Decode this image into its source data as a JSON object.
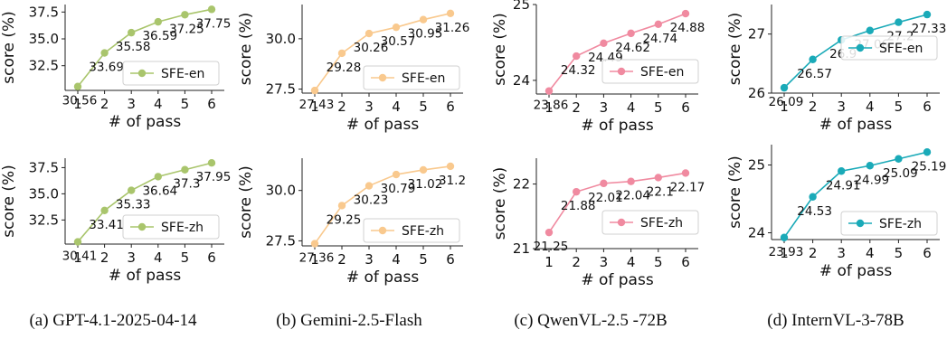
{
  "x_label": "# of pass",
  "y_label": "score (%)",
  "chart_data": [
    {
      "type": "line",
      "panel": "a",
      "title": "",
      "x": [
        1,
        2,
        3,
        4,
        5,
        6
      ],
      "series": [
        {
          "name": "SFE-en",
          "values": [
            30.56,
            33.69,
            35.58,
            36.59,
            37.25,
            37.75
          ]
        }
      ],
      "ylim": [
        30.2,
        38.2
      ],
      "yticks": [
        "32.5",
        "35.0",
        "37.5"
      ],
      "color": "#a9c56c",
      "legend": "lower-right"
    },
    {
      "type": "line",
      "panel": "a",
      "title": "",
      "x": [
        1,
        2,
        3,
        4,
        5,
        6
      ],
      "series": [
        {
          "name": "SFE-zh",
          "values": [
            30.41,
            33.41,
            35.33,
            36.64,
            37.3,
            37.95
          ]
        }
      ],
      "ylim": [
        30.2,
        38.4
      ],
      "yticks": [
        "32.5",
        "35.0",
        "37.5"
      ],
      "color": "#a9c56c",
      "legend": "lower-right"
    },
    {
      "type": "line",
      "panel": "b",
      "title": "",
      "x": [
        1,
        2,
        3,
        4,
        5,
        6
      ],
      "series": [
        {
          "name": "SFE-en",
          "values": [
            27.43,
            29.28,
            30.26,
            30.57,
            30.95,
            31.26
          ]
        }
      ],
      "ylim": [
        27.3,
        31.7
      ],
      "yticks": [
        "27.5",
        "30.0"
      ],
      "color": "#f9c98e",
      "legend": "lower-right"
    },
    {
      "type": "line",
      "panel": "b",
      "title": "",
      "x": [
        1,
        2,
        3,
        4,
        5,
        6
      ],
      "series": [
        {
          "name": "SFE-zh",
          "values": [
            27.36,
            29.25,
            30.23,
            30.79,
            31.02,
            31.2
          ]
        }
      ],
      "ylim": [
        27.25,
        31.6
      ],
      "yticks": [
        "27.5",
        "30.0"
      ],
      "color": "#f9c98e",
      "legend": "lower-right"
    },
    {
      "type": "line",
      "panel": "c",
      "title": "",
      "x": [
        1,
        2,
        3,
        4,
        5,
        6
      ],
      "series": [
        {
          "name": "SFE-en",
          "values": [
            23.86,
            24.32,
            24.49,
            24.62,
            24.74,
            24.88
          ]
        }
      ],
      "ylim": [
        23.82,
        25.0
      ],
      "yticks": [
        "24",
        "25"
      ],
      "color": "#f08aa0",
      "legend": "lower-right"
    },
    {
      "type": "line",
      "panel": "c",
      "title": "",
      "x": [
        1,
        2,
        3,
        4,
        5,
        6
      ],
      "series": [
        {
          "name": "SFE-zh",
          "values": [
            21.25,
            21.88,
            22.01,
            22.04,
            22.1,
            22.17
          ]
        }
      ],
      "ylim": [
        21.0,
        22.4
      ],
      "yticks": [
        "21",
        "22"
      ],
      "color": "#f08aa0",
      "legend": "lower-right"
    },
    {
      "type": "line",
      "panel": "d",
      "title": "",
      "x": [
        1,
        2,
        3,
        4,
        5,
        6
      ],
      "series": [
        {
          "name": "SFE-en",
          "values": [
            26.09,
            26.57,
            26.9,
            27.06,
            27.2,
            27.33
          ]
        }
      ],
      "ylim": [
        26.0,
        27.5
      ],
      "yticks": [
        "26",
        "27"
      ],
      "color": "#1aaab8",
      "legend": "lower-right"
    },
    {
      "type": "line",
      "panel": "d",
      "title": "",
      "x": [
        1,
        2,
        3,
        4,
        5,
        6
      ],
      "series": [
        {
          "name": "SFE-zh",
          "values": [
            23.93,
            24.53,
            24.91,
            24.99,
            25.09,
            25.19
          ]
        }
      ],
      "ylim": [
        23.9,
        25.3
      ],
      "yticks": [
        "24",
        "25"
      ],
      "color": "#1aaab8",
      "legend": "lower-right"
    }
  ],
  "captions": [
    "(a) GPT-4.1-2025-04-14",
    "(b) Gemini-2.5-Flash",
    "(c) QwenVL-2.5 -72B",
    "(d) InternVL-3-78B"
  ]
}
